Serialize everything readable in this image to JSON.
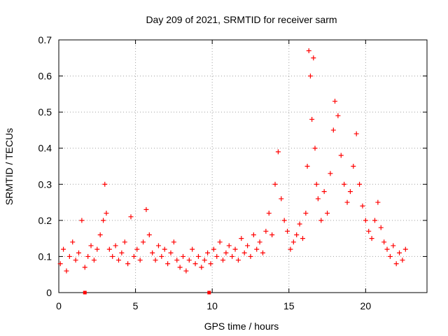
{
  "chart_data": {
    "type": "scatter",
    "title": "Day 209 of 2021, SRMTID for receiver sarm",
    "xlabel": "GPS time / hours",
    "ylabel": "SRMTID / TECUs",
    "xlim": [
      0,
      24
    ],
    "ylim": [
      0,
      0.7
    ],
    "xticks": [
      0,
      5,
      10,
      15,
      20
    ],
    "yticks": [
      0,
      0.1,
      0.2,
      0.3,
      0.4,
      0.5,
      0.6,
      0.7
    ],
    "grid": true,
    "marker": "+",
    "color": "#ff0000",
    "series": [
      {
        "name": "SRMTID",
        "note": "approximate subsample of visible scatter points",
        "points": [
          [
            0.1,
            0.08
          ],
          [
            0.3,
            0.12
          ],
          [
            0.5,
            0.06
          ],
          [
            0.7,
            0.1
          ],
          [
            0.9,
            0.14
          ],
          [
            1.1,
            0.09
          ],
          [
            1.3,
            0.11
          ],
          [
            1.5,
            0.2
          ],
          [
            1.7,
            0.07
          ],
          [
            1.9,
            0.1
          ],
          [
            2.1,
            0.13
          ],
          [
            2.3,
            0.09
          ],
          [
            2.5,
            0.12
          ],
          [
            2.7,
            0.16
          ],
          [
            2.9,
            0.2
          ],
          [
            3.0,
            0.3
          ],
          [
            3.1,
            0.22
          ],
          [
            3.3,
            0.12
          ],
          [
            3.5,
            0.1
          ],
          [
            3.7,
            0.13
          ],
          [
            3.9,
            0.09
          ],
          [
            4.1,
            0.11
          ],
          [
            4.3,
            0.14
          ],
          [
            4.5,
            0.08
          ],
          [
            4.7,
            0.21
          ],
          [
            4.9,
            0.1
          ],
          [
            5.1,
            0.12
          ],
          [
            5.3,
            0.09
          ],
          [
            5.5,
            0.14
          ],
          [
            5.7,
            0.23
          ],
          [
            5.9,
            0.16
          ],
          [
            6.1,
            0.11
          ],
          [
            6.3,
            0.09
          ],
          [
            6.5,
            0.13
          ],
          [
            6.7,
            0.1
          ],
          [
            6.9,
            0.12
          ],
          [
            7.1,
            0.08
          ],
          [
            7.3,
            0.11
          ],
          [
            7.5,
            0.14
          ],
          [
            7.7,
            0.09
          ],
          [
            7.9,
            0.07
          ],
          [
            8.1,
            0.1
          ],
          [
            8.3,
            0.06
          ],
          [
            8.5,
            0.09
          ],
          [
            8.7,
            0.12
          ],
          [
            8.9,
            0.08
          ],
          [
            9.1,
            0.1
          ],
          [
            9.3,
            0.07
          ],
          [
            9.5,
            0.09
          ],
          [
            9.7,
            0.11
          ],
          [
            9.9,
            0.08
          ],
          [
            10.1,
            0.12
          ],
          [
            10.3,
            0.1
          ],
          [
            10.5,
            0.14
          ],
          [
            10.7,
            0.09
          ],
          [
            10.9,
            0.11
          ],
          [
            11.1,
            0.13
          ],
          [
            11.3,
            0.1
          ],
          [
            11.5,
            0.12
          ],
          [
            11.7,
            0.09
          ],
          [
            11.9,
            0.15
          ],
          [
            12.1,
            0.11
          ],
          [
            12.3,
            0.13
          ],
          [
            12.5,
            0.1
          ],
          [
            12.7,
            0.16
          ],
          [
            12.9,
            0.12
          ],
          [
            13.1,
            0.14
          ],
          [
            13.3,
            0.11
          ],
          [
            13.5,
            0.17
          ],
          [
            13.7,
            0.22
          ],
          [
            13.9,
            0.16
          ],
          [
            14.1,
            0.3
          ],
          [
            14.3,
            0.39
          ],
          [
            14.5,
            0.26
          ],
          [
            14.7,
            0.2
          ],
          [
            14.9,
            0.17
          ],
          [
            15.1,
            0.12
          ],
          [
            15.3,
            0.14
          ],
          [
            15.5,
            0.16
          ],
          [
            15.7,
            0.19
          ],
          [
            15.9,
            0.15
          ],
          [
            16.1,
            0.22
          ],
          [
            16.2,
            0.35
          ],
          [
            16.3,
            0.67
          ],
          [
            16.4,
            0.6
          ],
          [
            16.5,
            0.48
          ],
          [
            16.6,
            0.65
          ],
          [
            16.7,
            0.4
          ],
          [
            16.8,
            0.3
          ],
          [
            16.9,
            0.26
          ],
          [
            17.1,
            0.2
          ],
          [
            17.3,
            0.28
          ],
          [
            17.5,
            0.22
          ],
          [
            17.7,
            0.33
          ],
          [
            17.9,
            0.45
          ],
          [
            18.0,
            0.53
          ],
          [
            18.2,
            0.49
          ],
          [
            18.4,
            0.38
          ],
          [
            18.6,
            0.3
          ],
          [
            18.8,
            0.25
          ],
          [
            19.0,
            0.28
          ],
          [
            19.2,
            0.35
          ],
          [
            19.4,
            0.44
          ],
          [
            19.6,
            0.3
          ],
          [
            19.8,
            0.24
          ],
          [
            20.0,
            0.2
          ],
          [
            20.2,
            0.17
          ],
          [
            20.4,
            0.15
          ],
          [
            20.6,
            0.2
          ],
          [
            20.8,
            0.25
          ],
          [
            21.0,
            0.18
          ],
          [
            21.2,
            0.14
          ],
          [
            21.4,
            0.12
          ],
          [
            21.6,
            0.1
          ],
          [
            21.8,
            0.13
          ],
          [
            22.0,
            0.08
          ],
          [
            22.2,
            0.11
          ],
          [
            22.4,
            0.09
          ],
          [
            22.6,
            0.12
          ],
          [
            1.7,
            0.0
          ],
          [
            9.8,
            0.0
          ]
        ]
      }
    ]
  }
}
